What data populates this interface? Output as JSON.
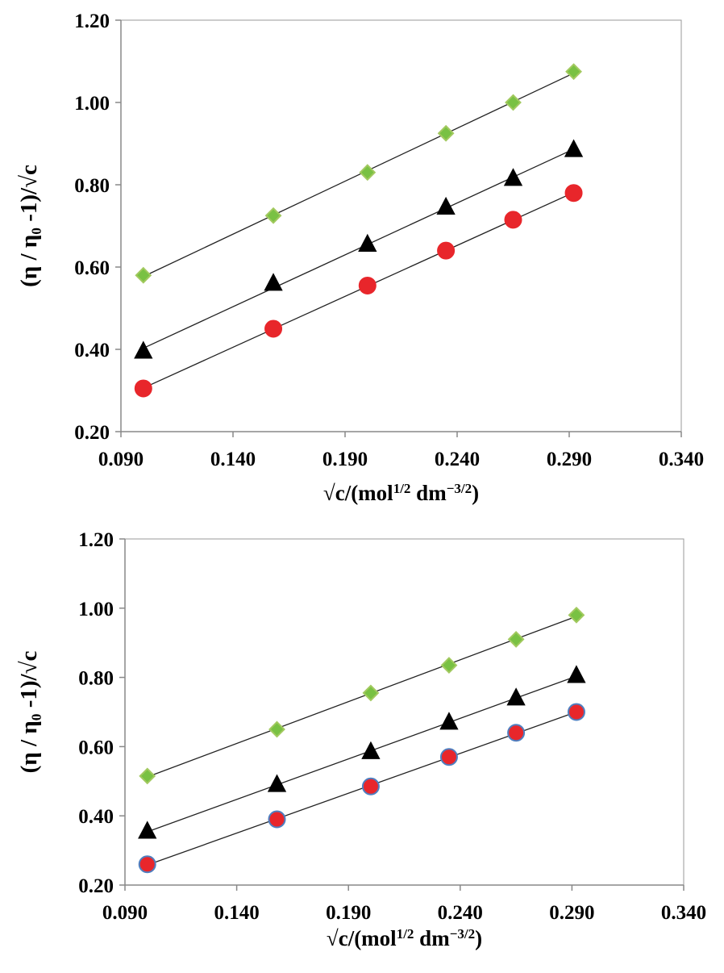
{
  "chart_data": [
    {
      "type": "scatter",
      "trendline": "linear",
      "ylabel": "(η / η₀ -1)/√c",
      "xlabel": [
        "√c/(mol",
        "1/2",
        " dm",
        "−3/2",
        ")"
      ],
      "xlim": [
        0.09,
        0.34
      ],
      "ylim": [
        0.2,
        1.2
      ],
      "xticks": [
        {
          "value": 0.09,
          "label": "0.090"
        },
        {
          "value": 0.14,
          "label": "0.140"
        },
        {
          "value": 0.19,
          "label": "0.190"
        },
        {
          "value": 0.24,
          "label": "0.240"
        },
        {
          "value": 0.29,
          "label": "0.290"
        },
        {
          "value": 0.34,
          "label": "0.340"
        }
      ],
      "yticks": [
        {
          "value": 0.2,
          "label": "0.20"
        },
        {
          "value": 0.4,
          "label": "0.40"
        },
        {
          "value": 0.6,
          "label": "0.60"
        },
        {
          "value": 0.8,
          "label": "0.80"
        },
        {
          "value": 1.0,
          "label": "1.00"
        },
        {
          "value": 1.2,
          "label": "1.20"
        }
      ],
      "x": [
        0.1,
        0.158,
        0.2,
        0.235,
        0.265,
        0.292
      ],
      "series": [
        {
          "marker": "diamond",
          "color": "#79c143",
          "edge": "#a2c95f",
          "values": [
            0.58,
            0.725,
            0.83,
            0.925,
            1.0,
            1.075
          ]
        },
        {
          "marker": "triangle",
          "color": "#000000",
          "edge": "#000000",
          "values": [
            0.395,
            0.56,
            0.655,
            0.745,
            0.815,
            0.885
          ]
        },
        {
          "marker": "circle",
          "color": "#e8262b",
          "edge": "#e8262b",
          "values": [
            0.305,
            0.45,
            0.555,
            0.64,
            0.715,
            0.78
          ]
        }
      ]
    },
    {
      "type": "scatter",
      "trendline": "linear",
      "ylabel": "(η / η₀ -1)/√c",
      "xlabel": [
        "√c/(mol",
        "1/2",
        " dm",
        "−3/2",
        ")"
      ],
      "xlim": [
        0.09,
        0.34
      ],
      "ylim": [
        0.2,
        1.2
      ],
      "xticks": [
        {
          "value": 0.09,
          "label": "0.090"
        },
        {
          "value": 0.14,
          "label": "0.140"
        },
        {
          "value": 0.19,
          "label": "0.190"
        },
        {
          "value": 0.24,
          "label": "0.240"
        },
        {
          "value": 0.29,
          "label": "0.290"
        },
        {
          "value": 0.34,
          "label": "0.340"
        }
      ],
      "yticks": [
        {
          "value": 0.2,
          "label": "0.20"
        },
        {
          "value": 0.4,
          "label": "0.40"
        },
        {
          "value": 0.6,
          "label": "0.60"
        },
        {
          "value": 0.8,
          "label": "0.80"
        },
        {
          "value": 1.0,
          "label": "1.00"
        },
        {
          "value": 1.2,
          "label": "1.20"
        }
      ],
      "x": [
        0.1,
        0.158,
        0.2,
        0.235,
        0.265,
        0.292
      ],
      "series": [
        {
          "marker": "diamond",
          "color": "#79c143",
          "edge": "#a2c95f",
          "values": [
            0.515,
            0.65,
            0.755,
            0.835,
            0.91,
            0.98
          ]
        },
        {
          "marker": "triangle",
          "color": "#000000",
          "edge": "#000000",
          "values": [
            0.355,
            0.49,
            0.585,
            0.67,
            0.74,
            0.805
          ]
        },
        {
          "marker": "circle",
          "color": "#e8262b",
          "edge": "#4f7fc0",
          "values": [
            0.26,
            0.39,
            0.485,
            0.57,
            0.64,
            0.7
          ]
        }
      ]
    }
  ]
}
